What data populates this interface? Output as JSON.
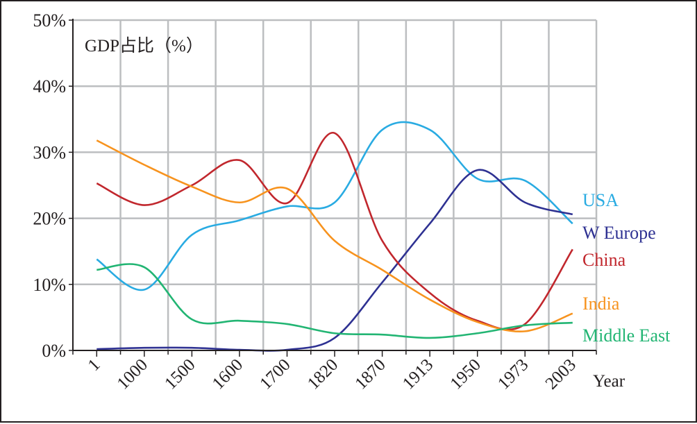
{
  "chart_data": {
    "type": "line",
    "title": "GDP占比（%）",
    "xlabel": "Year",
    "ylabel": "",
    "categories": [
      "1",
      "1000",
      "1500",
      "1600",
      "1700",
      "1820",
      "1870",
      "1913",
      "1950",
      "1973",
      "2003"
    ],
    "ylim": [
      0,
      50
    ],
    "yticks": [
      "0%",
      "10%",
      "20%",
      "30%",
      "40%",
      "50%"
    ],
    "grid": true,
    "legend_placement": "right, at line ends",
    "series": [
      {
        "name": "USA",
        "color": "#29abe2",
        "values": [
          13.8,
          9.2,
          17.5,
          19.7,
          21.8,
          22.4,
          33.4,
          33.4,
          26.0,
          25.7,
          19.2
        ]
      },
      {
        "name": "W Europe",
        "color": "#2e3192",
        "values": [
          0.2,
          0.4,
          0.4,
          0.1,
          0.1,
          1.9,
          10.3,
          19.2,
          27.3,
          22.4,
          20.6
        ]
      },
      {
        "name": "China",
        "color": "#c1272d",
        "values": [
          25.3,
          22.0,
          25.0,
          28.8,
          22.3,
          32.9,
          16.6,
          8.7,
          4.5,
          4.0,
          15.3
        ]
      },
      {
        "name": "India",
        "color": "#f7931e",
        "values": [
          31.8,
          28.1,
          24.8,
          22.4,
          24.5,
          16.6,
          12.2,
          7.7,
          4.3,
          2.9,
          5.6
        ]
      },
      {
        "name": "Middle East",
        "color": "#22b573",
        "values": [
          12.2,
          12.6,
          4.7,
          4.5,
          4.0,
          2.6,
          2.4,
          1.9,
          2.6,
          3.8,
          4.2
        ]
      }
    ]
  }
}
